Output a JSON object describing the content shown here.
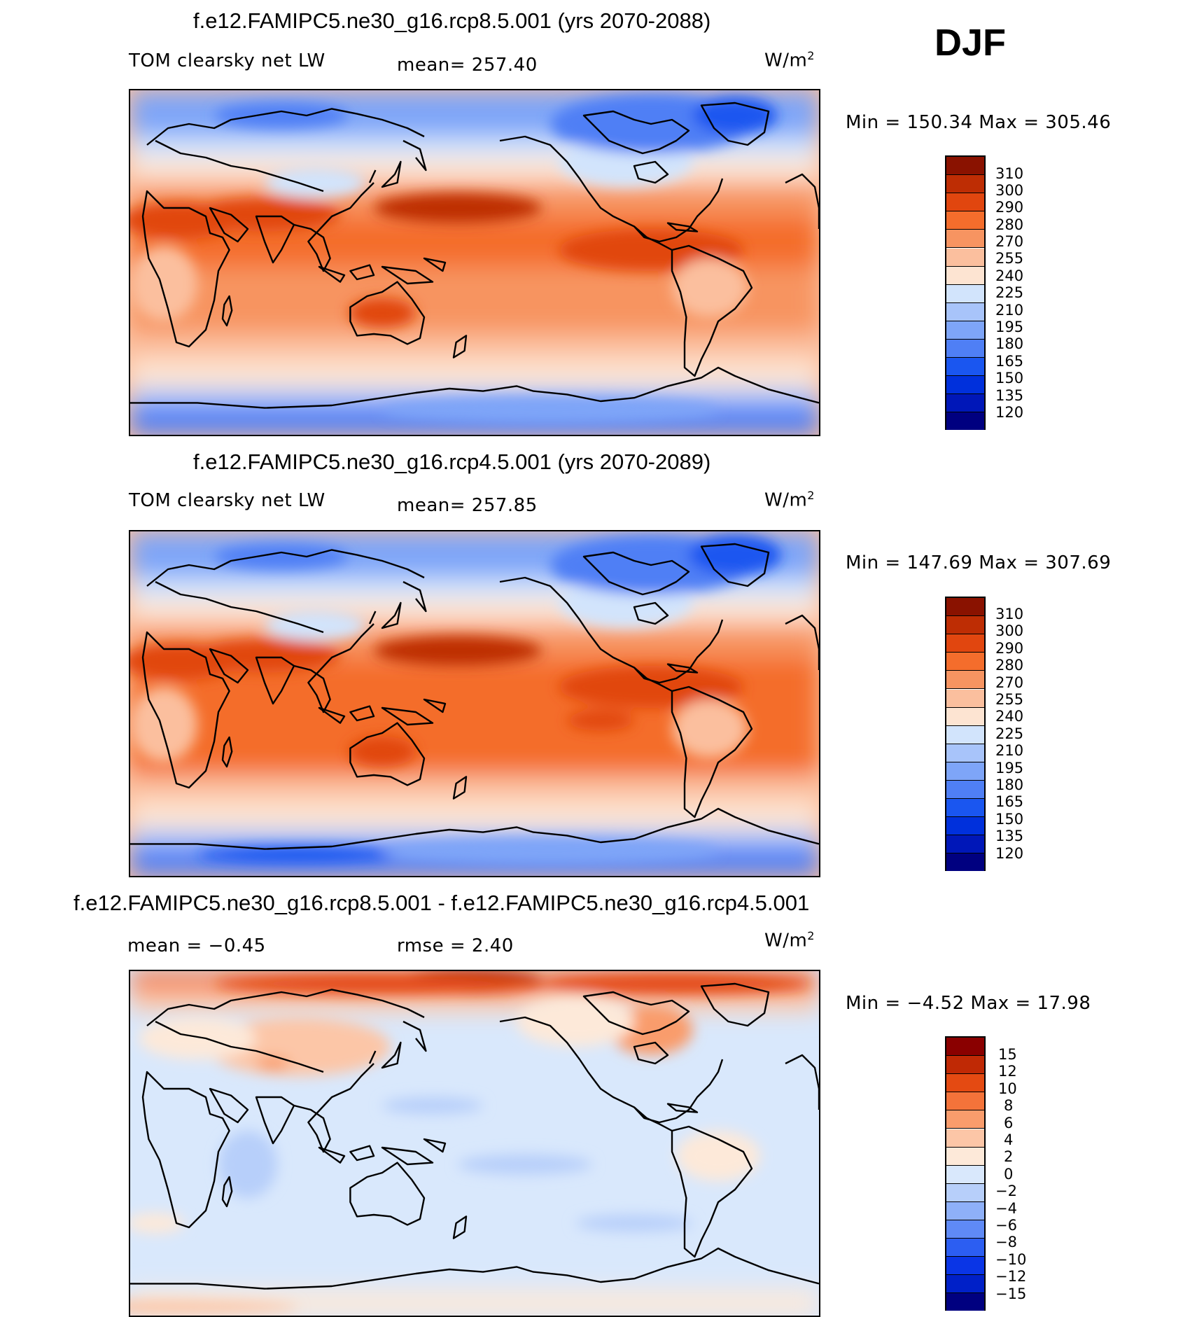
{
  "season": "DJF",
  "colors": {
    "warm_scale": [
      "#000080",
      "#0017b8",
      "#0030dc",
      "#1a56f0",
      "#4f7ff5",
      "#7ea5f8",
      "#a8c4fa",
      "#d2e4fc",
      "#fde4d2",
      "#fbbf9e",
      "#f79461",
      "#f46d2c",
      "#e1460f",
      "#be2d04",
      "#8a1200"
    ],
    "diff_scale": [
      "#000080",
      "#0020c8",
      "#0a35e6",
      "#2c5ef2",
      "#5f8af6",
      "#8eb0f8",
      "#b7cffa",
      "#d9e8fc",
      "#fde9d9",
      "#fcc6a7",
      "#f99c6c",
      "#f4733a",
      "#e44a12",
      "#c02905",
      "#8a0000"
    ]
  },
  "panels": [
    {
      "id": "rcp85",
      "title": "f.e12.FAMIPC5.ne30_g16.rcp8.5.001 (yrs 2070-2088)",
      "variable": "TOM clearsky net LW",
      "mean_text": "mean= 257.40",
      "units": "W/m",
      "units_sup": "2",
      "minmax": "Min = 150.34 Max = 305.46",
      "colorbar_labels": [
        "310",
        "300",
        "290",
        "280",
        "270",
        "255",
        "240",
        "225",
        "210",
        "195",
        "180",
        "165",
        "150",
        "135",
        "120"
      ]
    },
    {
      "id": "rcp45",
      "title": "f.e12.FAMIPC5.ne30_g16.rcp4.5.001 (yrs 2070-2089)",
      "variable": "TOM clearsky net LW",
      "mean_text": "mean= 257.85",
      "units": "W/m",
      "units_sup": "2",
      "minmax": "Min = 147.69 Max = 307.69",
      "colorbar_labels": [
        "310",
        "300",
        "290",
        "280",
        "270",
        "255",
        "240",
        "225",
        "210",
        "195",
        "180",
        "165",
        "150",
        "135",
        "120"
      ]
    },
    {
      "id": "diff",
      "title": "f.e12.FAMIPC5.ne30_g16.rcp8.5.001 - f.e12.FAMIPC5.ne30_g16.rcp4.5.001",
      "mean_text": "mean = −0.45",
      "rmse_text": "rmse = 2.40",
      "units": "W/m",
      "units_sup": "2",
      "minmax": "Min = −4.52 Max = 17.98",
      "colorbar_labels": [
        "15",
        "12",
        "10",
        "8",
        "6",
        "4",
        "2",
        "0",
        "−2",
        "−4",
        "−6",
        "−8",
        "−10",
        "−12",
        "−15"
      ]
    }
  ]
}
